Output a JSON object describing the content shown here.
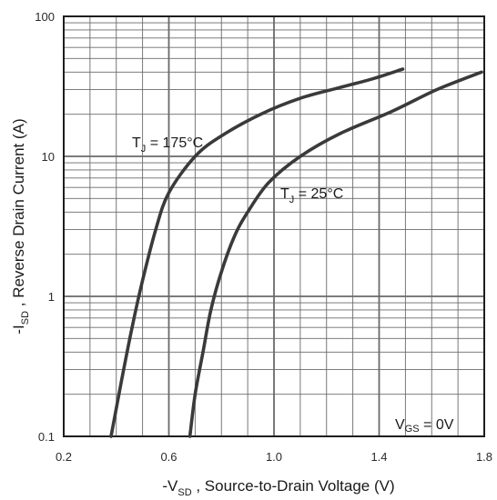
{
  "chart_data": {
    "type": "line",
    "scale_y": "log",
    "grid": true,
    "xlabel_prefix": "-V",
    "xlabel_sub": "SD",
    "xlabel_rest": " , Source-to-Drain Voltage (V)",
    "ylabel_prefix": "-I",
    "ylabel_sub": "SD",
    "ylabel_rest": " , Reverse Drain Current (A)",
    "xlim": [
      0.2,
      1.8
    ],
    "ylim": [
      0.1,
      100
    ],
    "x_ticks": [
      "0.2",
      "0.6",
      "1.0",
      "1.4",
      "1.8"
    ],
    "y_ticks": [
      "0.1",
      "1",
      "10",
      "100"
    ],
    "series": [
      {
        "name": "T_J = 175°C",
        "label_main": "T",
        "label_sub": "J",
        "label_rest": " = 175°C",
        "x": [
          0.38,
          0.42,
          0.46,
          0.5,
          0.55,
          0.6,
          0.7,
          0.8,
          0.95,
          1.1,
          1.25,
          1.38,
          1.49
        ],
        "y": [
          0.1,
          0.25,
          0.6,
          1.3,
          3.0,
          5.5,
          10.0,
          14.0,
          20.0,
          26.0,
          31.0,
          36.0,
          42.0
        ]
      },
      {
        "name": "T_J = 25°C",
        "label_main": "T",
        "label_sub": "J",
        "label_rest": " = 25°C",
        "x": [
          0.68,
          0.7,
          0.73,
          0.76,
          0.8,
          0.85,
          0.9,
          0.98,
          1.1,
          1.25,
          1.45,
          1.62,
          1.79
        ],
        "y": [
          0.1,
          0.2,
          0.4,
          0.8,
          1.5,
          2.7,
          4.0,
          6.5,
          10.0,
          14.5,
          21.0,
          30.0,
          40.0
        ]
      }
    ],
    "condition_main": "V",
    "condition_sub": "GS",
    "condition_rest": "  = 0V"
  },
  "colors": {
    "curve": "#3a3a3a",
    "grid": "#6a6a6a",
    "frame": "#1e1e1e"
  }
}
